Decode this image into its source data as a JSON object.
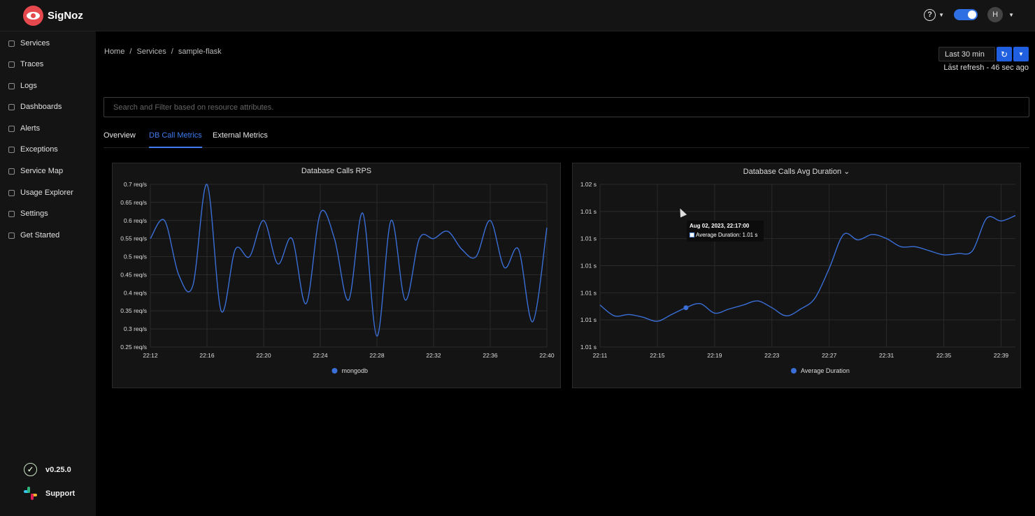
{
  "app": {
    "name": "SigNoz"
  },
  "header": {
    "help_label": "?",
    "avatar_initial": "H"
  },
  "sidebar": {
    "items": [
      {
        "label": "Services",
        "icon": "bar-chart-icon"
      },
      {
        "label": "Traces",
        "icon": "list-icon"
      },
      {
        "label": "Logs",
        "icon": "align-left-icon"
      },
      {
        "label": "Dashboards",
        "icon": "dashboard-icon"
      },
      {
        "label": "Alerts",
        "icon": "bell-icon"
      },
      {
        "label": "Exceptions",
        "icon": "bug-icon"
      },
      {
        "label": "Service Map",
        "icon": "deployment-icon"
      },
      {
        "label": "Usage Explorer",
        "icon": "line-chart-icon"
      },
      {
        "label": "Settings",
        "icon": "gear-icon"
      },
      {
        "label": "Get Started",
        "icon": "rocket-icon"
      }
    ],
    "version": "v0.25.0",
    "support": "Support"
  },
  "breadcrumb": [
    "Home",
    "/",
    "Services",
    "/",
    "sample-flask"
  ],
  "time_picker": {
    "selected": "Last 30 min",
    "last_refresh": "Last refresh - 46 sec ago"
  },
  "search": {
    "placeholder": "Search and Filter based on resource attributes."
  },
  "tabs": [
    {
      "label": "Overview",
      "active": false
    },
    {
      "label": "DB Call Metrics",
      "active": true
    },
    {
      "label": "External Metrics",
      "active": false
    }
  ],
  "colors": {
    "accent": "#3f7bf0",
    "series": "#3a6fd8"
  },
  "chart_data": [
    {
      "type": "line",
      "title": "Database Calls RPS",
      "x": [
        "22:12",
        "22:13",
        "22:14",
        "22:15",
        "22:16",
        "22:17",
        "22:18",
        "22:19",
        "22:20",
        "22:21",
        "22:22",
        "22:23",
        "22:24",
        "22:25",
        "22:26",
        "22:27",
        "22:28",
        "22:29",
        "22:30",
        "22:31",
        "22:32",
        "22:33",
        "22:34",
        "22:35",
        "22:36",
        "22:37",
        "22:38",
        "22:39",
        "22:40"
      ],
      "x_ticks": [
        "22:12",
        "22:16",
        "22:20",
        "22:24",
        "22:28",
        "22:32",
        "22:36",
        "22:40"
      ],
      "y_ticks": [
        "0.7 req/s",
        "0.65 req/s",
        "0.6 req/s",
        "0.55 req/s",
        "0.5 req/s",
        "0.45 req/s",
        "0.4 req/s",
        "0.35 req/s",
        "0.3 req/s",
        "0.25 req/s"
      ],
      "ylim": [
        0.25,
        0.7
      ],
      "series": [
        {
          "name": "mongodb",
          "values": [
            0.55,
            0.6,
            0.45,
            0.42,
            0.7,
            0.35,
            0.52,
            0.5,
            0.6,
            0.48,
            0.55,
            0.37,
            0.62,
            0.55,
            0.38,
            0.62,
            0.28,
            0.6,
            0.38,
            0.55,
            0.55,
            0.57,
            0.52,
            0.5,
            0.6,
            0.47,
            0.52,
            0.32,
            0.58
          ]
        }
      ],
      "legend": "bottom"
    },
    {
      "type": "line",
      "title": "Database Calls Avg Duration",
      "x": [
        "22:11",
        "22:12",
        "22:13",
        "22:14",
        "22:15",
        "22:16",
        "22:17",
        "22:18",
        "22:19",
        "22:20",
        "22:21",
        "22:22",
        "22:23",
        "22:24",
        "22:25",
        "22:26",
        "22:27",
        "22:28",
        "22:29",
        "22:30",
        "22:31",
        "22:32",
        "22:33",
        "22:34",
        "22:35",
        "22:36",
        "22:37",
        "22:38",
        "22:39",
        "22:40"
      ],
      "x_ticks": [
        "22:11",
        "22:15",
        "22:19",
        "22:23",
        "22:27",
        "22:31",
        "22:35",
        "22:39"
      ],
      "y_ticks": [
        "1.02 s",
        "1.01 s",
        "1.01 s",
        "1.01 s",
        "1.01 s",
        "1.01 s",
        "1.01 s"
      ],
      "ylim": [
        1.0,
        1.012
      ],
      "series": [
        {
          "name": "Average Duration",
          "values": [
            1.0031,
            1.0023,
            1.0024,
            1.0022,
            1.0019,
            1.0024,
            1.0029,
            1.0032,
            1.0025,
            1.0028,
            1.0031,
            1.0034,
            1.0029,
            1.0023,
            1.0028,
            1.0036,
            1.0058,
            1.0083,
            1.0079,
            1.0083,
            1.008,
            1.0074,
            1.0074,
            1.0071,
            1.0068,
            1.0069,
            1.0071,
            1.0095,
            1.0093,
            1.0097
          ]
        }
      ],
      "legend": "bottom",
      "tooltip": {
        "date": "Aug 02, 2023, 22:17:00",
        "text": "Average Duration: 1.01 s"
      }
    }
  ]
}
